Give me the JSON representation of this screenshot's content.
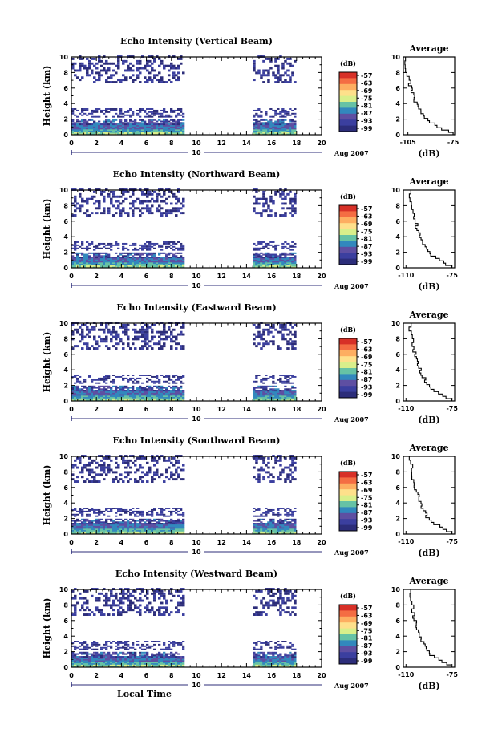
{
  "chart_data": [
    {
      "type": "heatmap",
      "title": "Echo Intensity (Vertical Beam)",
      "ylabel": "Height (km)",
      "xlabel": "",
      "xlim": [
        0,
        20
      ],
      "ylim": [
        0,
        10
      ],
      "x_ticks": [
        "0",
        "2",
        "4",
        "6",
        "8",
        "10",
        "12",
        "14",
        "16",
        "18",
        "20"
      ],
      "y_ticks": [
        "0",
        "2",
        "4",
        "6",
        "8",
        "10"
      ],
      "date_marker": "10",
      "date_label": "Aug 2007",
      "colorbar_unit": "(dB)",
      "colorbar_levels": [
        "-57",
        "-63",
        "-69",
        "-75",
        "-81",
        "-87",
        "-93",
        "-99"
      ],
      "data_segments": [
        [
          0,
          9
        ],
        [
          14.5,
          18
        ]
      ],
      "avg": {
        "title": "Average",
        "xlabel": "(dB)",
        "x_ticks": [
          "-105",
          "-75"
        ],
        "y_ticks": [
          "0",
          "2",
          "4",
          "6",
          "8",
          "10"
        ],
        "xlim": [
          -108,
          -74
        ]
      }
    },
    {
      "type": "heatmap",
      "title": "Echo Intensity (Northward Beam)",
      "ylabel": "Height (km)",
      "xlabel": "",
      "xlim": [
        0,
        20
      ],
      "ylim": [
        0,
        10
      ],
      "x_ticks": [
        "0",
        "2",
        "4",
        "6",
        "8",
        "10",
        "12",
        "14",
        "16",
        "18",
        "20"
      ],
      "y_ticks": [
        "0",
        "2",
        "4",
        "6",
        "8",
        "10"
      ],
      "date_marker": "10",
      "date_label": "Aug 2007",
      "colorbar_unit": "(dB)",
      "colorbar_levels": [
        "-57",
        "-63",
        "-69",
        "-75",
        "-81",
        "-87",
        "-93",
        "-99"
      ],
      "data_segments": [
        [
          0,
          9
        ],
        [
          14.5,
          18
        ]
      ],
      "avg": {
        "title": "Average",
        "xlabel": "(dB)",
        "x_ticks": [
          "-110",
          "-75"
        ],
        "y_ticks": [
          "0",
          "2",
          "4",
          "6",
          "8",
          "10"
        ],
        "xlim": [
          -112,
          -73
        ]
      }
    },
    {
      "type": "heatmap",
      "title": "Echo Intensity (Eastward Beam)",
      "ylabel": "Height (km)",
      "xlabel": "",
      "xlim": [
        0,
        20
      ],
      "ylim": [
        0,
        10
      ],
      "x_ticks": [
        "0",
        "2",
        "4",
        "6",
        "8",
        "10",
        "12",
        "14",
        "16",
        "18",
        "20"
      ],
      "y_ticks": [
        "0",
        "2",
        "4",
        "6",
        "8",
        "10"
      ],
      "date_marker": "10",
      "date_label": "Aug 2007",
      "colorbar_unit": "(dB)",
      "colorbar_levels": [
        "-57",
        "-63",
        "-69",
        "-75",
        "-81",
        "-87",
        "-93",
        "-99"
      ],
      "data_segments": [
        [
          0,
          9
        ],
        [
          14.5,
          18
        ]
      ],
      "avg": {
        "title": "Average",
        "xlabel": "(dB)",
        "x_ticks": [
          "-110",
          "-75"
        ],
        "y_ticks": [
          "0",
          "2",
          "4",
          "6",
          "8",
          "10"
        ],
        "xlim": [
          -112,
          -73
        ]
      }
    },
    {
      "type": "heatmap",
      "title": "Echo Intensity (Southward Beam)",
      "ylabel": "Height (km)",
      "xlabel": "",
      "xlim": [
        0,
        20
      ],
      "ylim": [
        0,
        10
      ],
      "x_ticks": [
        "0",
        "2",
        "4",
        "6",
        "8",
        "10",
        "12",
        "14",
        "16",
        "18",
        "20"
      ],
      "y_ticks": [
        "0",
        "2",
        "4",
        "6",
        "8",
        "10"
      ],
      "date_marker": "10",
      "date_label": "Aug 2007",
      "colorbar_unit": "(dB)",
      "colorbar_levels": [
        "-57",
        "-63",
        "-69",
        "-75",
        "-81",
        "-87",
        "-93",
        "-99"
      ],
      "data_segments": [
        [
          0,
          9
        ],
        [
          14.5,
          18
        ]
      ],
      "avg": {
        "title": "Average",
        "xlabel": "(dB)",
        "x_ticks": [
          "-110",
          "-75"
        ],
        "y_ticks": [
          "0",
          "2",
          "4",
          "6",
          "8",
          "10"
        ],
        "xlim": [
          -112,
          -73
        ]
      }
    },
    {
      "type": "heatmap",
      "title": "Echo Intensity (Westward Beam)",
      "ylabel": "Height (km)",
      "xlabel": "Local Time",
      "xlim": [
        0,
        20
      ],
      "ylim": [
        0,
        10
      ],
      "x_ticks": [
        "0",
        "2",
        "4",
        "6",
        "8",
        "10",
        "12",
        "14",
        "16",
        "18",
        "20"
      ],
      "y_ticks": [
        "0",
        "2",
        "4",
        "6",
        "8",
        "10"
      ],
      "date_marker": "10",
      "date_label": "Aug 2007",
      "colorbar_unit": "(dB)",
      "colorbar_levels": [
        "-57",
        "-63",
        "-69",
        "-75",
        "-81",
        "-87",
        "-93",
        "-99"
      ],
      "data_segments": [
        [
          0,
          9
        ],
        [
          14.5,
          18
        ]
      ],
      "avg": {
        "title": "Average",
        "xlabel": "(dB)",
        "x_ticks": [
          "-110",
          "-75"
        ],
        "y_ticks": [
          "0",
          "2",
          "4",
          "6",
          "8",
          "10"
        ],
        "xlim": [
          -112,
          -73
        ]
      }
    }
  ],
  "colorbar_colors": [
    "#d73027",
    "#f46d43",
    "#fdae61",
    "#fee08b",
    "#d9ef8b",
    "#66c2a5",
    "#3288bd",
    "#5e4fa2",
    "#3b3f9f",
    "#2c2d7a"
  ],
  "avg_profile": [
    [
      0,
      -76
    ],
    [
      0.3,
      -79
    ],
    [
      0.6,
      -82
    ],
    [
      0.9,
      -85
    ],
    [
      1.2,
      -88
    ],
    [
      1.5,
      -91
    ],
    [
      1.8,
      -92
    ],
    [
      2.1,
      -94
    ],
    [
      2.4,
      -95
    ],
    [
      2.7,
      -96
    ],
    [
      3.0,
      -97
    ],
    [
      3.3,
      -98
    ],
    [
      3.6,
      -99
    ],
    [
      3.9,
      -99
    ],
    [
      4.2,
      -100
    ],
    [
      4.5,
      -101
    ],
    [
      4.8,
      -101
    ],
    [
      5.1,
      -102
    ],
    [
      5.4,
      -102
    ],
    [
      5.7,
      -103
    ],
    [
      6.0,
      -103
    ],
    [
      6.3,
      -104
    ],
    [
      6.6,
      -104
    ],
    [
      7.0,
      -105
    ],
    [
      7.5,
      -105
    ],
    [
      8.0,
      -106
    ],
    [
      8.5,
      -106
    ],
    [
      9.0,
      -107
    ],
    [
      9.5,
      -107
    ],
    [
      10,
      -107
    ]
  ]
}
